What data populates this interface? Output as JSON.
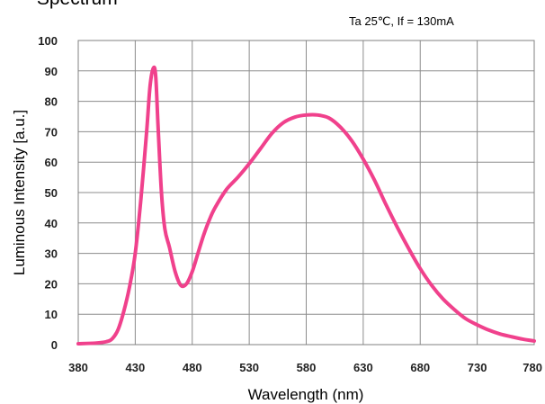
{
  "chart_data": {
    "type": "line",
    "title": "- Spectrum",
    "subtitle": "Ta 25℃,  If = 130mA",
    "xlabel": "Wavelength (nm)",
    "ylabel": "Luminous Intensity  [a.u.]",
    "xlim": [
      380,
      780
    ],
    "ylim": [
      0,
      100
    ],
    "x_ticks": [
      380,
      430,
      480,
      530,
      580,
      630,
      680,
      730,
      780
    ],
    "y_ticks": [
      0,
      10,
      20,
      30,
      40,
      50,
      60,
      70,
      80,
      90,
      100
    ],
    "grid": true,
    "line_color": "#f0418c",
    "series": [
      {
        "x": [
          380,
          395,
          405,
          410,
          415,
          420,
          425,
          430,
          435,
          440,
          443,
          446,
          448,
          450,
          453,
          456,
          460,
          465,
          470,
          475,
          480,
          485,
          490,
          495,
          500,
          510,
          520,
          530,
          540,
          550,
          560,
          570,
          580,
          590,
          600,
          610,
          620,
          630,
          640,
          650,
          660,
          670,
          680,
          690,
          700,
          710,
          720,
          730,
          740,
          750,
          760,
          770,
          780
        ],
        "y": [
          0.3,
          0.5,
          1,
          2,
          5,
          11,
          19,
          30,
          48,
          70,
          85,
          91,
          88,
          72,
          50,
          38,
          32,
          24,
          19.5,
          20,
          24,
          30,
          36,
          41,
          45,
          51,
          55,
          59.5,
          64.5,
          69.5,
          73,
          74.8,
          75.5,
          75.5,
          74.5,
          71.5,
          67,
          61,
          54,
          46,
          38.5,
          31.5,
          25,
          19.5,
          15,
          11.5,
          8.5,
          6.5,
          4.8,
          3.5,
          2.6,
          1.8,
          1.2
        ]
      }
    ]
  }
}
